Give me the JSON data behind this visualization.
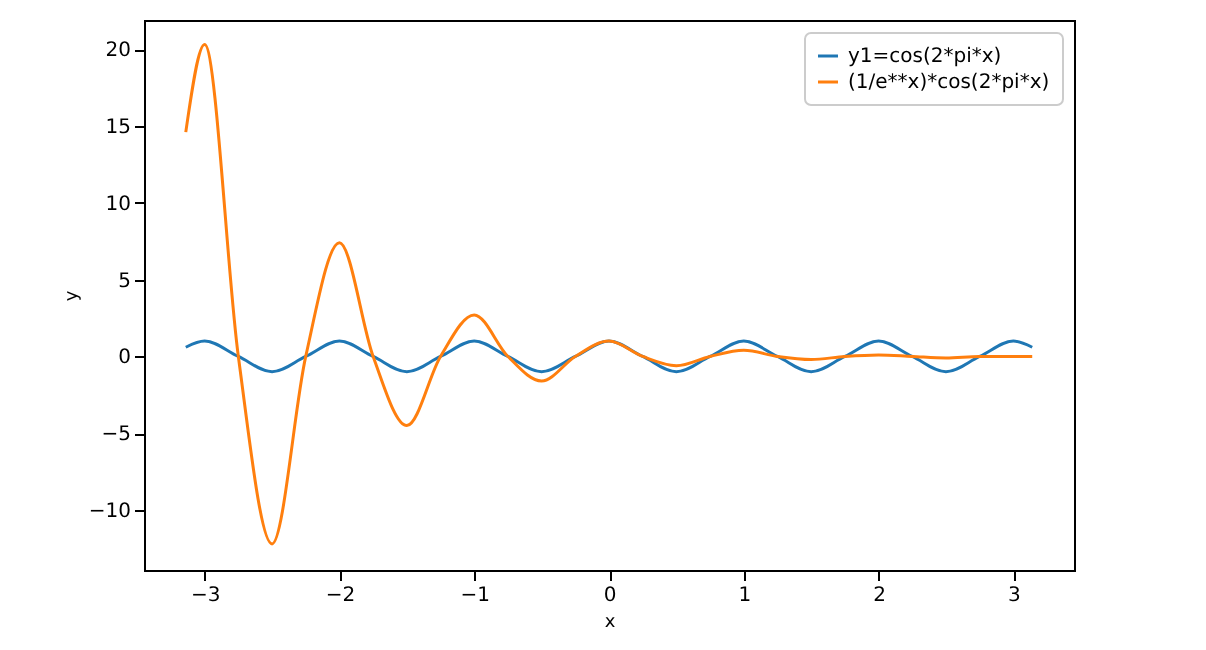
{
  "chart_data": {
    "type": "line",
    "xlabel": "x",
    "ylabel": "y",
    "legend": "top right",
    "marker": "none",
    "line_style": "solid",
    "x": [
      -3.14,
      -3,
      -2.75,
      -2.5,
      -2.25,
      -2,
      -1.75,
      -1.5,
      -1.25,
      -1,
      -0.75,
      -0.5,
      -0.25,
      0,
      0.25,
      0.5,
      0.75,
      1,
      1.25,
      1.5,
      1.75,
      2,
      2.25,
      2.5,
      2.75,
      3,
      3.14
    ],
    "xlim": [
      -3.45,
      3.45
    ],
    "xticks": [
      -3,
      -2,
      -1,
      0,
      1,
      2,
      3
    ],
    "ylim": [
      -13.9,
      21.9
    ],
    "yticks": [
      -10,
      -5,
      0,
      5,
      10,
      15,
      20
    ],
    "series": [
      {
        "name": "y1=cos(2*pi*x)",
        "color": "#1f77b4",
        "values": [
          0.6,
          1,
          0,
          -1,
          0,
          1,
          0,
          -1,
          0,
          1,
          0,
          -1,
          0,
          1,
          0,
          -1,
          0,
          1,
          0,
          -1,
          0,
          1,
          0,
          -1,
          0,
          1,
          0.6
        ]
      },
      {
        "name": "(1/e**x)*cos(2*pi*x)",
        "color": "#ff7f0e",
        "values": [
          14.6,
          20.3,
          0,
          -12.2,
          0,
          7.4,
          0,
          -4.5,
          0,
          2.7,
          0,
          -1.6,
          0,
          1,
          0,
          -0.6,
          0,
          0.4,
          0,
          -0.2,
          0,
          0.1,
          0,
          -0.1,
          0,
          0,
          0
        ]
      }
    ]
  }
}
